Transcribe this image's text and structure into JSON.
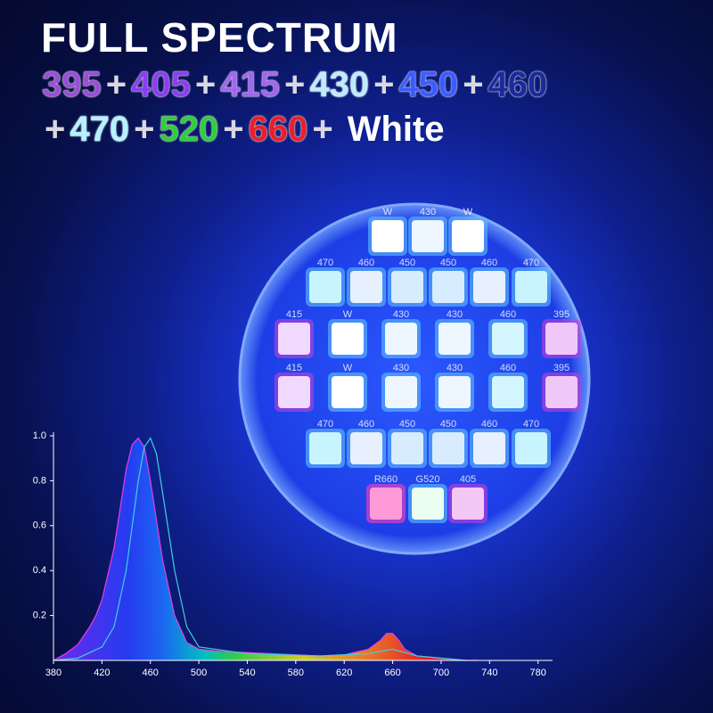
{
  "title": "FULL SPECTRUM",
  "separator": "+",
  "lines": [
    [
      {
        "label": "395",
        "color": "#9a4fd8"
      },
      {
        "label": "405",
        "color": "#8b3ef2"
      },
      {
        "label": "415",
        "color": "#a466ee"
      },
      {
        "label": "430",
        "color": "#bfeaff"
      },
      {
        "label": "450",
        "color": "#3d5cff"
      },
      {
        "label": "460",
        "color": "#1b2a9c"
      }
    ],
    [
      {
        "label": "470",
        "color": "#b4f2ff"
      },
      {
        "label": "520",
        "color": "#2fcf3c"
      },
      {
        "label": "660",
        "color": "#ec1f28"
      },
      {
        "label": "White",
        "color": "#ffffff"
      }
    ]
  ],
  "led_board": {
    "rows": [
      [
        {
          "label": "W",
          "color": "#ffffff"
        },
        {
          "label": "430",
          "color": "#eef6ff"
        },
        {
          "label": "W",
          "color": "#ffffff"
        }
      ],
      [
        {
          "label": "470",
          "color": "#c8f4ff"
        },
        {
          "label": "460",
          "color": "#e6f0ff"
        },
        {
          "label": "450",
          "color": "#d8ecff"
        },
        {
          "label": "450",
          "color": "#d8ecff"
        },
        {
          "label": "460",
          "color": "#e6f0ff"
        },
        {
          "label": "470",
          "color": "#c8f4ff"
        }
      ],
      [
        {
          "label": "415",
          "color": "#f0d8ff"
        },
        {
          "label": "W",
          "color": "#ffffff"
        },
        {
          "label": "430",
          "color": "#eef6ff"
        },
        {
          "label": "430",
          "color": "#eef6ff"
        },
        {
          "label": "460",
          "color": "#d4f6ff"
        },
        {
          "label": "395",
          "color": "#f0c8f8"
        }
      ],
      [
        {
          "label": "415",
          "color": "#f0d8ff"
        },
        {
          "label": "W",
          "color": "#ffffff"
        },
        {
          "label": "430",
          "color": "#eef6ff"
        },
        {
          "label": "430",
          "color": "#eef6ff"
        },
        {
          "label": "460",
          "color": "#d4f6ff"
        },
        {
          "label": "395",
          "color": "#f0c8f8"
        }
      ],
      [
        {
          "label": "470",
          "color": "#c8f4ff"
        },
        {
          "label": "460",
          "color": "#e6f0ff"
        },
        {
          "label": "450",
          "color": "#d8ecff"
        },
        {
          "label": "450",
          "color": "#d8ecff"
        },
        {
          "label": "460",
          "color": "#e6f0ff"
        },
        {
          "label": "470",
          "color": "#c8f4ff"
        }
      ],
      [
        {
          "label": "R660",
          "color": "#ff9ad8"
        },
        {
          "label": "G520",
          "color": "#eafff0"
        },
        {
          "label": "405",
          "color": "#f4c8f4"
        }
      ]
    ]
  },
  "chart_data": {
    "type": "area",
    "xlim": [
      380,
      792
    ],
    "ylim": [
      0,
      1.0
    ],
    "xticks": [
      380,
      420,
      460,
      500,
      540,
      580,
      620,
      660,
      700,
      740,
      780
    ],
    "yticks": [
      0.2,
      0.4,
      0.6,
      0.8,
      {
        "value": 1.0,
        "label": "1.0"
      }
    ],
    "series": [
      {
        "color": "#e040e0",
        "x": [
          380,
          390,
          400,
          410,
          415,
          420,
          430,
          440,
          445,
          450,
          455,
          460,
          470,
          480,
          490,
          500,
          520,
          540,
          560,
          580,
          600,
          620,
          640,
          650,
          655,
          660,
          665,
          670,
          680,
          700,
          720,
          730
        ],
        "values": [
          0,
          0.03,
          0.07,
          0.15,
          0.2,
          0.27,
          0.5,
          0.85,
          0.96,
          0.99,
          0.95,
          0.8,
          0.45,
          0.2,
          0.08,
          0.05,
          0.04,
          0.035,
          0.03,
          0.025,
          0.02,
          0.025,
          0.05,
          0.09,
          0.12,
          0.12,
          0.09,
          0.05,
          0.02,
          0.01,
          0,
          0
        ]
      },
      {
        "color": "#40d0e0",
        "x": [
          380,
          400,
          420,
          430,
          440,
          450,
          455,
          460,
          465,
          470,
          480,
          490,
          500,
          540,
          600,
          640,
          660,
          680,
          720
        ],
        "values": [
          0,
          0.01,
          0.06,
          0.15,
          0.4,
          0.8,
          0.95,
          0.99,
          0.92,
          0.75,
          0.4,
          0.15,
          0.06,
          0.03,
          0.02,
          0.03,
          0.05,
          0.02,
          0
        ]
      }
    ]
  }
}
